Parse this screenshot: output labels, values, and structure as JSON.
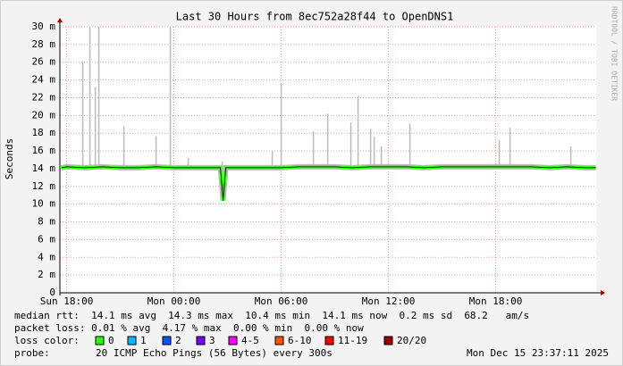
{
  "chart_data": {
    "type": "line",
    "title": "Last 30 Hours from 8ec752a28f44 to OpenDNS1",
    "y_label": "Seconds",
    "watermark": "RRDTOOL / TOBI OETIKER",
    "xlim": [
      17.62,
      47.62
    ],
    "xticks": [
      {
        "value": 18,
        "label": "Sun 18:00"
      },
      {
        "value": 24,
        "label": "Mon 00:00"
      },
      {
        "value": 30,
        "label": "Mon 06:00"
      },
      {
        "value": 36,
        "label": "Mon 12:00"
      },
      {
        "value": 42,
        "label": "Mon 18:00"
      }
    ],
    "ylim": [
      0,
      0.03
    ],
    "yticks": [
      0,
      {
        "value": 0.002,
        "label": "2 m"
      },
      {
        "value": 0.004,
        "label": "4 m"
      },
      {
        "value": 0.006,
        "label": "6 m"
      },
      {
        "value": 0.008,
        "label": "8 m"
      },
      {
        "value": 0.01,
        "label": "10 m"
      },
      {
        "value": 0.012,
        "label": "12 m"
      },
      {
        "value": 0.014,
        "label": "14 m"
      },
      {
        "value": 0.016,
        "label": "16 m"
      },
      {
        "value": 0.018,
        "label": "18 m"
      },
      {
        "value": 0.02,
        "label": "20 m"
      },
      {
        "value": 0.022,
        "label": "22 m"
      },
      {
        "value": 0.024,
        "label": "24 m"
      },
      {
        "value": 0.026,
        "label": "26 m"
      },
      {
        "value": 0.028,
        "label": "28 m"
      },
      {
        "value": 0.03,
        "label": "30 m"
      }
    ],
    "grid": true,
    "median": {
      "color": "#26ff00",
      "x": [
        17.7,
        18,
        19,
        20,
        21,
        22,
        23,
        24,
        25,
        26,
        26.6,
        26.75,
        26.9,
        27,
        28,
        29,
        30,
        31,
        32,
        33,
        34,
        35,
        36,
        37,
        38,
        39,
        40,
        41,
        42,
        43,
        44,
        45,
        46,
        47,
        47.6
      ],
      "values": [
        0.0141,
        0.0142,
        0.0141,
        0.0142,
        0.0141,
        0.0141,
        0.0142,
        0.0141,
        0.0141,
        0.0141,
        0.0141,
        0.0104,
        0.0141,
        0.0141,
        0.0141,
        0.0141,
        0.0141,
        0.0142,
        0.0142,
        0.0142,
        0.0141,
        0.0142,
        0.0142,
        0.0142,
        0.0141,
        0.0142,
        0.0142,
        0.0142,
        0.0142,
        0.0142,
        0.0142,
        0.0141,
        0.0142,
        0.0141,
        0.0141
      ]
    },
    "smoke": {
      "color": "#bbbbbb",
      "x": [
        18.9,
        19.3,
        19.6,
        19.8,
        21.2,
        23.0,
        23.8,
        24.8,
        26.7,
        29.5,
        30.0,
        31.8,
        32.6,
        33.9,
        34.3,
        35.0,
        35.2,
        35.6,
        37.2,
        42.2,
        42.8,
        46.2
      ],
      "values": [
        0.0261,
        0.03,
        0.0232,
        0.03,
        0.0188,
        0.0177,
        0.03,
        0.0152,
        0.0148,
        0.016,
        0.0236,
        0.0182,
        0.0202,
        0.0192,
        0.0222,
        0.0185,
        0.0176,
        0.0165,
        0.0191,
        0.0172,
        0.0186,
        0.0165
      ]
    },
    "stats": [
      "median rtt:  14.1 ms avg  14.3 ms max  10.4 ms min  14.1 ms now  0.2 ms sd  68.2   am/s",
      "packet loss: 0.01 % avg  4.17 % max  0.00 % min  0.00 % now"
    ],
    "loss_label": "loss color:",
    "loss_colors": [
      {
        "label": "0",
        "color": "#26ff00"
      },
      {
        "label": "1",
        "color": "#00b8ff"
      },
      {
        "label": "2",
        "color": "#0059ff"
      },
      {
        "label": "3",
        "color": "#7e00ff"
      },
      {
        "label": "4-5",
        "color": "#ff00ff"
      },
      {
        "label": "6-10",
        "color": "#ff5500"
      },
      {
        "label": "11-19",
        "color": "#ff0000"
      },
      {
        "label": "20/20",
        "color": "#a10000"
      }
    ],
    "probe_label": "probe:",
    "probe": "20 ICMP Echo Pings (56 Bytes) every 300s",
    "timestamp": "Mon Dec 15 23:37:11 2025"
  }
}
